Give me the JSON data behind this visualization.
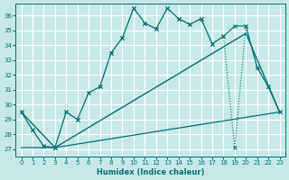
{
  "xlabel": "Humidex (Indice chaleur)",
  "bg_color": "#c8e8e8",
  "line_color": "#007070",
  "grid_color": "#ffffff",
  "xlim": [
    -0.5,
    23.5
  ],
  "ylim": [
    26.5,
    36.8
  ],
  "yticks": [
    27,
    28,
    29,
    30,
    31,
    32,
    33,
    34,
    35,
    36
  ],
  "xticks": [
    0,
    1,
    2,
    3,
    4,
    5,
    6,
    7,
    8,
    9,
    10,
    11,
    12,
    13,
    14,
    15,
    16,
    17,
    18,
    19,
    20,
    21,
    22,
    23
  ],
  "series1_x": [
    0,
    1,
    2,
    3,
    4,
    5,
    6,
    7,
    8,
    9,
    10,
    11,
    12,
    13,
    14,
    15,
    16,
    17,
    18,
    19,
    20,
    21,
    22,
    23
  ],
  "series1_y": [
    29.5,
    28.3,
    27.2,
    27.1,
    29.5,
    29.0,
    30.8,
    31.2,
    33.5,
    34.5,
    36.5,
    35.5,
    35.1,
    36.5,
    35.8,
    35.4,
    35.8,
    34.1,
    34.6,
    27.1,
    35.3,
    32.5,
    31.2,
    29.5
  ],
  "series2_x": [
    0,
    1,
    2,
    3,
    4,
    5,
    6,
    7,
    8,
    9,
    10,
    11,
    12,
    13,
    14,
    15,
    16,
    17,
    18,
    19,
    20,
    21,
    22,
    23
  ],
  "series2_y": [
    29.5,
    28.3,
    27.2,
    27.1,
    29.5,
    29.0,
    30.8,
    31.2,
    33.5,
    34.5,
    36.5,
    35.5,
    35.1,
    36.5,
    35.8,
    35.4,
    35.8,
    34.1,
    34.6,
    35.3,
    35.3,
    32.5,
    31.2,
    29.5
  ],
  "series3_x": [
    0,
    3,
    20,
    23
  ],
  "series3_y": [
    29.5,
    27.1,
    34.8,
    29.5
  ],
  "series4_x": [
    0,
    3,
    23
  ],
  "series4_y": [
    27.1,
    27.1,
    29.5
  ]
}
